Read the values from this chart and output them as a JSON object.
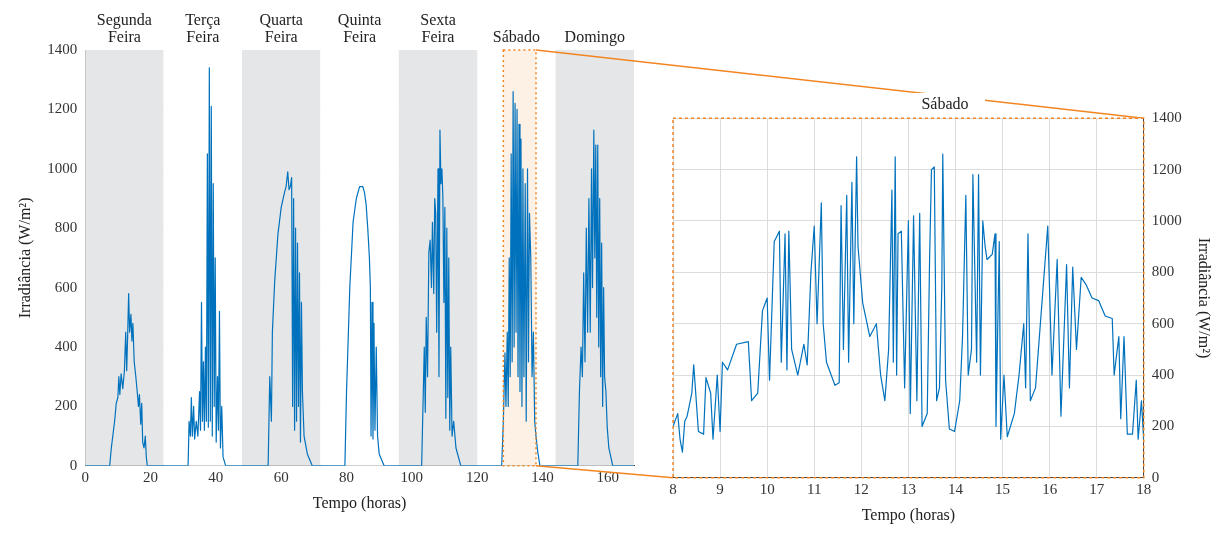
{
  "chart_data": [
    {
      "type": "line",
      "xlabel": "Tempo (horas)",
      "ylabel": "Irradiância (W/m²)",
      "xlim": [
        0,
        168
      ],
      "xticks": [
        0,
        20,
        40,
        60,
        80,
        100,
        120,
        140,
        160
      ],
      "ylim": [
        0,
        1400
      ],
      "yticks": [
        0,
        200,
        400,
        600,
        800,
        1000,
        1200,
        1400
      ],
      "grid": true,
      "legend": false,
      "bands": [
        {
          "axis": "x",
          "from": 0,
          "to": 24,
          "label": "Segunda Feira",
          "color": "#e5e6e8"
        },
        {
          "axis": "x",
          "from": 24,
          "to": 48,
          "label": "Terça Feira",
          "color": "#ffffff"
        },
        {
          "axis": "x",
          "from": 48,
          "to": 72,
          "label": "Quarta Feira",
          "color": "#e5e6e8"
        },
        {
          "axis": "x",
          "from": 72,
          "to": 96,
          "label": "Quinta Feira",
          "color": "#ffffff"
        },
        {
          "axis": "x",
          "from": 96,
          "to": 120,
          "label": "Sexta Feira",
          "color": "#e5e6e8"
        },
        {
          "axis": "x",
          "from": 120,
          "to": 144,
          "label": "Sábado",
          "color": "#ffffff"
        },
        {
          "axis": "x",
          "from": 144,
          "to": 168,
          "label": "Domingo",
          "color": "#e5e6e8"
        },
        {
          "axis": "x",
          "from": 128,
          "to": 138,
          "color": "#f28522"
        }
      ],
      "series": [
        {
          "color": "#0072bd",
          "x": [
            0,
            7.5,
            8,
            9,
            9.5,
            10,
            10.3,
            10.6,
            11,
            11.5,
            12,
            12.4,
            12.7,
            13,
            13.3,
            13.6,
            14,
            14.3,
            14.6,
            15,
            15.5,
            16,
            16.3,
            16.6,
            17,
            17.3,
            17.6,
            18,
            18.4,
            18.7,
            19,
            31.5,
            31.8,
            32.2,
            32.5,
            32.8,
            33.2,
            33.5,
            34,
            34.5,
            35,
            35.3,
            35.6,
            35.9,
            36.2,
            36.5,
            36.8,
            37.1,
            37.4,
            37.7,
            38,
            38.3,
            38.6,
            38.9,
            39.2,
            39.5,
            39.8,
            40.1,
            40.5,
            40.8,
            41.1,
            41.4,
            41.8,
            42.2,
            43,
            56,
            56.5,
            57,
            57.3,
            58,
            59,
            60,
            61,
            61.5,
            62,
            62.4,
            62.8,
            63.2,
            63.5,
            63.8,
            64.1,
            64.4,
            64.7,
            65,
            65.3,
            65.6,
            65.9,
            66.2,
            66.5,
            67,
            68,
            69.5,
            79.5,
            80,
            81,
            82,
            83,
            84,
            85,
            85.5,
            86,
            86.5,
            87,
            87.3,
            87.5,
            87.8,
            88.1,
            88.4,
            88.7,
            89.1,
            89.5,
            90,
            91.5,
            103,
            103.5,
            103.8,
            104.1,
            104.4,
            104.8,
            105.2,
            105.6,
            106,
            106.3,
            106.7,
            107,
            107.3,
            107.6,
            108,
            108.3,
            108.6,
            108.9,
            109.2,
            109.5,
            109.8,
            110.1,
            110.4,
            110.7,
            111,
            111.3,
            111.6,
            111.9,
            112.3,
            112.8,
            113.5,
            115,
            127.5,
            128,
            128.5,
            128.8,
            129.2,
            129.5,
            129.8,
            130.1,
            130.4,
            130.7,
            131,
            131.3,
            131.6,
            131.9,
            132.2,
            132.5,
            132.8,
            133.1,
            133.4,
            133.7,
            134,
            134.3,
            134.7,
            135,
            135.4,
            135.7,
            136,
            136.4,
            136.8,
            137.2,
            137.6,
            138,
            138.5,
            139.2,
            150.8,
            151.3,
            151.8,
            152.2,
            152.6,
            153,
            153.4,
            153.8,
            154.2,
            154.6,
            155,
            155.3,
            155.7,
            156,
            156.3,
            156.6,
            156.9,
            157.2,
            157.5,
            157.8,
            158.1,
            158.4,
            158.7,
            159,
            159.4,
            159.8,
            160.3,
            161.5,
            168
          ],
          "values": [
            0,
            0,
            60,
            150,
            210,
            230,
            300,
            240,
            310,
            260,
            320,
            450,
            320,
            440,
            580,
            450,
            510,
            420,
            480,
            350,
            300,
            240,
            200,
            240,
            140,
            210,
            80,
            60,
            100,
            30,
            0,
            0,
            150,
            100,
            230,
            100,
            200,
            90,
            150,
            100,
            250,
            120,
            550,
            150,
            350,
            120,
            400,
            150,
            1050,
            130,
            1340,
            150,
            1210,
            100,
            950,
            200,
            700,
            80,
            300,
            120,
            520,
            60,
            200,
            30,
            0,
            0,
            300,
            150,
            450,
            620,
            780,
            870,
            920,
            940,
            990,
            930,
            940,
            970,
            200,
            900,
            120,
            800,
            150,
            750,
            200,
            650,
            80,
            550,
            250,
            100,
            40,
            0,
            0,
            250,
            600,
            820,
            900,
            940,
            940,
            920,
            880,
            800,
            700,
            600,
            100,
            550,
            90,
            480,
            120,
            400,
            100,
            40,
            0,
            0,
            250,
            400,
            180,
            500,
            300,
            720,
            760,
            600,
            820,
            580,
            900,
            850,
            450,
            1000,
            300,
            1130,
            950,
            1000,
            900,
            550,
            870,
            160,
            800,
            230,
            700,
            120,
            400,
            100,
            150,
            60,
            0,
            0,
            150,
            380,
            200,
            450,
            200,
            700,
            300,
            1050,
            350,
            1260,
            400,
            1220,
            450,
            1200,
            300,
            1150,
            250,
            1100,
            200,
            1000,
            300,
            950,
            150,
            1000,
            350,
            850,
            700,
            300,
            450,
            150,
            100,
            50,
            0,
            0,
            250,
            400,
            300,
            650,
            350,
            800,
            450,
            900,
            450,
            1000,
            600,
            1130,
            700,
            1080,
            500,
            1080,
            400,
            900,
            300,
            750,
            200,
            600,
            300,
            250,
            130,
            60,
            0,
            0
          ]
        }
      ]
    },
    {
      "type": "line",
      "title": "Sábado",
      "xlabel": "Tempo (horas)",
      "y2label": "Irradiância (W/m²)",
      "xlim": [
        8,
        18
      ],
      "xticks": [
        8,
        9,
        10,
        11,
        12,
        13,
        14,
        15,
        16,
        17,
        18
      ],
      "y2lim": [
        0,
        1400
      ],
      "y2ticks": [
        0,
        200,
        400,
        600,
        800,
        1000,
        1200,
        1400
      ],
      "grid": true,
      "legend": false,
      "series": [
        {
          "color": "#0072bd",
          "axis": "y2",
          "x": [
            8,
            8.1,
            8.15,
            8.2,
            8.25,
            8.3,
            8.4,
            8.44,
            8.54,
            8.65,
            8.7,
            8.8,
            8.85,
            8.94,
            9,
            9.05,
            9.16,
            9.35,
            9.6,
            9.67,
            9.8,
            9.9,
            10,
            10.05,
            10.15,
            10.26,
            10.3,
            10.38,
            10.42,
            10.46,
            10.52,
            10.65,
            10.78,
            10.85,
            10.93,
            11,
            11.06,
            11.15,
            11.19,
            11.26,
            11.44,
            11.53,
            11.57,
            11.62,
            11.69,
            11.73,
            11.8,
            11.84,
            11.9,
            11.93,
            12.03,
            12.18,
            12.32,
            12.41,
            12.5,
            12.58,
            12.65,
            12.68,
            12.72,
            12.75,
            12.78,
            12.85,
            12.92,
            13,
            13.04,
            13.11,
            13.18,
            13.24,
            13.29,
            13.4,
            13.45,
            13.49,
            13.55,
            13.6,
            13.66,
            13.71,
            13.73,
            13.79,
            13.87,
            13.98,
            14.09,
            14.15,
            14.22,
            14.27,
            14.34,
            14.37,
            14.45,
            14.49,
            14.53,
            14.58,
            14.63,
            14.67,
            14.78,
            14.84,
            14.86,
            14.93,
            14.96,
            15.03,
            15.1,
            15.25,
            15.35,
            15.45,
            15.49,
            15.54,
            15.59,
            15.7,
            15.96,
            16.05,
            16.16,
            16.24,
            16.36,
            16.42,
            16.49,
            16.57,
            16.67,
            16.78,
            16.9,
            17.04,
            17.18,
            17.33,
            17.37,
            17.47,
            17.51,
            17.58,
            17.65,
            17.76,
            17.84,
            17.88,
            17.95,
            18
          ],
          "values": [
            200,
            250,
            150,
            100,
            220,
            240,
            330,
            440,
            180,
            170,
            390,
            330,
            150,
            400,
            180,
            450,
            420,
            520,
            530,
            300,
            330,
            650,
            700,
            380,
            920,
            960,
            450,
            950,
            420,
            960,
            500,
            400,
            520,
            440,
            800,
            980,
            600,
            1070,
            600,
            450,
            360,
            370,
            1060,
            500,
            1100,
            450,
            1150,
            600,
            1250,
            900,
            680,
            550,
            600,
            400,
            300,
            500,
            1120,
            450,
            1250,
            400,
            950,
            960,
            350,
            1000,
            250,
            1020,
            300,
            1030,
            200,
            250,
            850,
            1200,
            1210,
            300,
            350,
            750,
            1260,
            380,
            190,
            180,
            300,
            550,
            1100,
            400,
            500,
            1180,
            450,
            1180,
            400,
            1000,
            900,
            850,
            870,
            950,
            200,
            920,
            150,
            400,
            160,
            250,
            400,
            600,
            350,
            950,
            300,
            350,
            980,
            400,
            850,
            240,
            830,
            350,
            820,
            500,
            780,
            750,
            700,
            690,
            630,
            620,
            400,
            550,
            230,
            550,
            170,
            170,
            380,
            150,
            300,
            140
          ]
        }
      ]
    }
  ]
}
